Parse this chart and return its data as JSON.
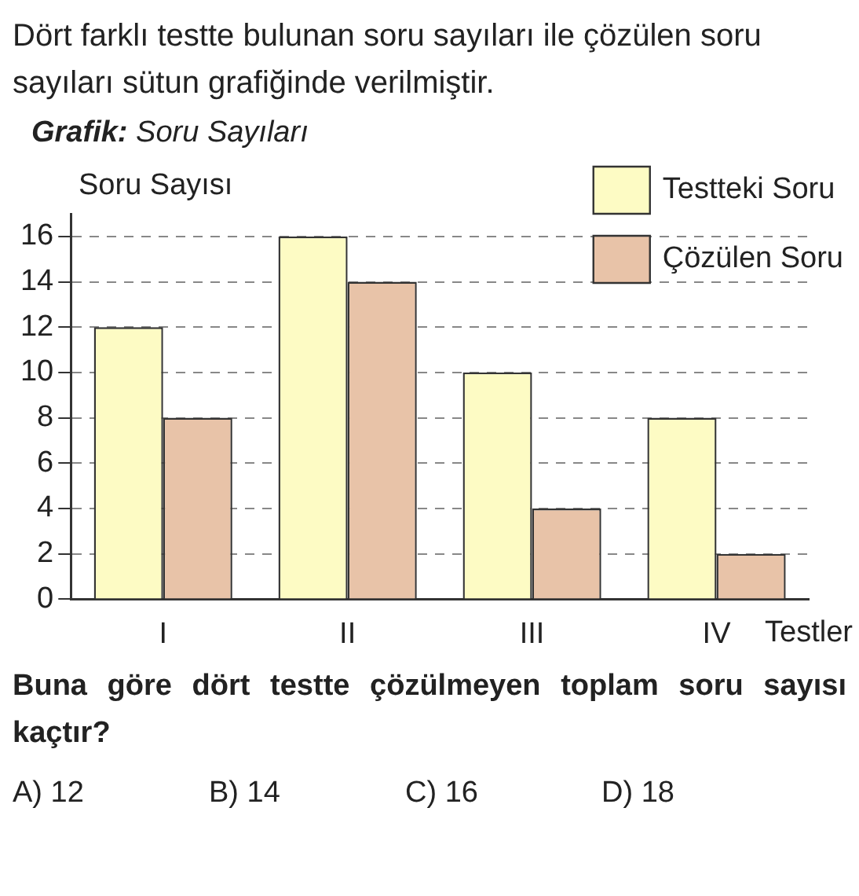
{
  "chart_data": {
    "type": "bar",
    "title": "Grafik: Soru Sayıları",
    "ylabel": "Soru Sayısı",
    "xlabel": "Testler",
    "categories": [
      "I",
      "II",
      "III",
      "IV"
    ],
    "series": [
      {
        "name": "Testteki Soru",
        "color": "#fdfbc4",
        "values": [
          12,
          16,
          10,
          8
        ]
      },
      {
        "name": "Çözülen Soru",
        "color": "#e8c3a8",
        "values": [
          8,
          14,
          4,
          2
        ]
      }
    ],
    "ylim": [
      0,
      17
    ],
    "yticks": [
      0,
      2,
      4,
      6,
      8,
      10,
      12,
      14,
      16
    ],
    "grid": "y",
    "legend": "top right",
    "line_style": "dashed",
    "annotations": [
      "Dört farklı testte bulunan soru sayıları ile çözülen soru sayıları sütun grafiğinde verilmiştir.",
      "Buna göre dört testte çözülmeyen toplam soru sayısı kaçtır?",
      "A) 12",
      "B) 14",
      "C) 16",
      "D) 18"
    ]
  }
}
